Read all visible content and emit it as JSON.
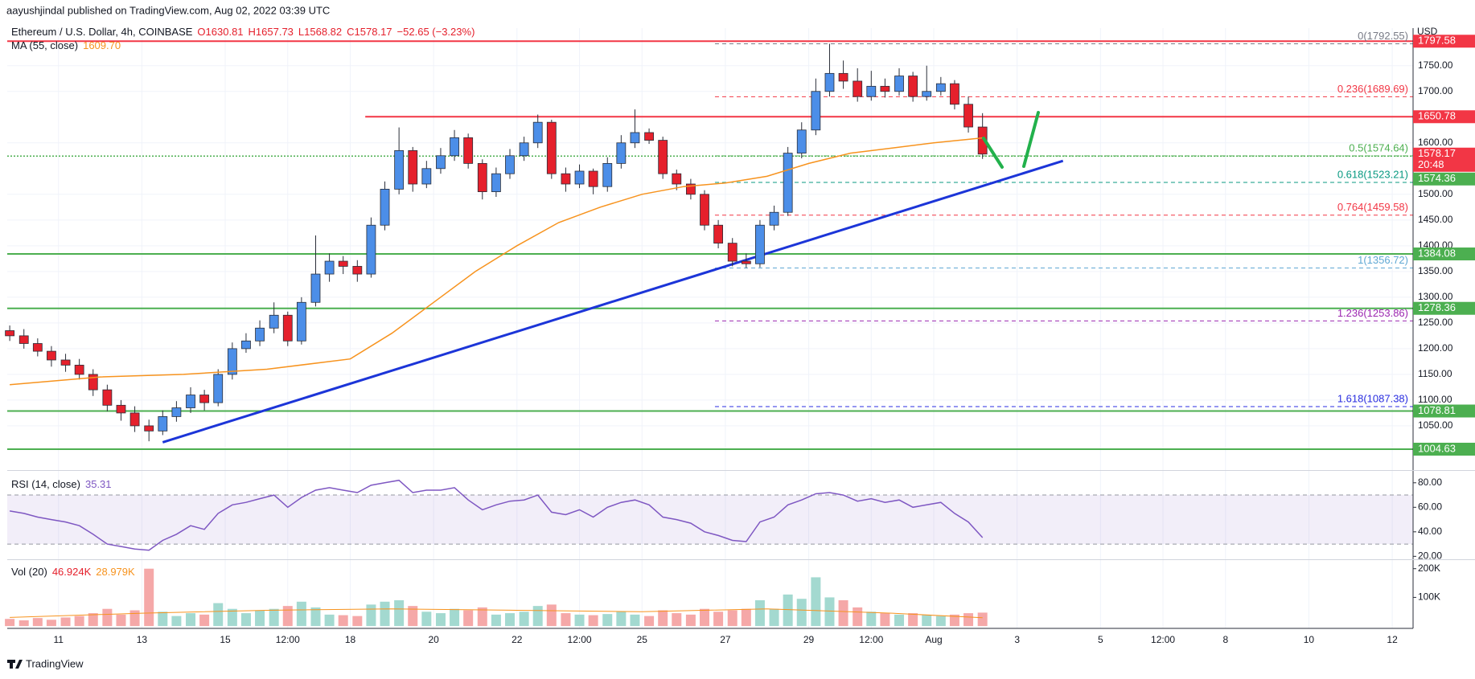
{
  "header": {
    "publisher": "aayushjindal published on TradingView.com, Aug 02, 2022 03:39 UTC",
    "footer": "TradingView"
  },
  "chart_data": [
    {
      "type": "candlestick",
      "title": "Ethereum / U.S. Dollar, 4h, COINBASE",
      "legend": [
        "O1630.81",
        "H1657.73",
        "L1568.82",
        "C1578.17",
        "−52.65 (−3.23%)"
      ],
      "y_axis_label": "USD",
      "up_color": "#4c8ee8",
      "down_color": "#e5202c",
      "x": [
        -0.17,
        0.17,
        0.5,
        0.83,
        1.17,
        1.5,
        1.83,
        2.17,
        2.5,
        2.83,
        3.17,
        3.5,
        3.83,
        4.17,
        4.5,
        4.83,
        5.17,
        5.5,
        5.83,
        6.17,
        6.5,
        6.83,
        7.17,
        7.5,
        7.83,
        8.17,
        8.5,
        8.83,
        9.17,
        9.5,
        9.83,
        10.17,
        10.5,
        10.83,
        11.17,
        11.5,
        11.83,
        12.17,
        12.5,
        12.83,
        13.17,
        13.5,
        13.83,
        14.17,
        14.5,
        14.83,
        15.17,
        15.5,
        15.83,
        16.17,
        16.5,
        16.83,
        17.17,
        17.5,
        17.83,
        18.17,
        18.5,
        18.83,
        19.17,
        19.5,
        19.83,
        20.17,
        20.5,
        20.83,
        21.17,
        21.5,
        21.83,
        22.17,
        22.5,
        22.83,
        23.17
      ],
      "open": [
        1235,
        1225,
        1210,
        1195,
        1178,
        1168,
        1150,
        1120,
        1090,
        1075,
        1050,
        1040,
        1068,
        1085,
        1110,
        1095,
        1150,
        1200,
        1215,
        1240,
        1265,
        1215,
        1290,
        1345,
        1370,
        1360,
        1345,
        1440,
        1510,
        1585,
        1520,
        1550,
        1575,
        1610,
        1560,
        1505,
        1540,
        1575,
        1600,
        1640,
        1540,
        1520,
        1545,
        1515,
        1560,
        1600,
        1620,
        1605,
        1540,
        1520,
        1500,
        1440,
        1405,
        1370,
        1365,
        1440,
        1465,
        1580,
        1625,
        1700,
        1735,
        1720,
        1690,
        1710,
        1700,
        1730,
        1690,
        1700,
        1715,
        1675,
        1630.81
      ],
      "high": [
        1245,
        1238,
        1220,
        1205,
        1190,
        1180,
        1160,
        1130,
        1100,
        1088,
        1062,
        1080,
        1098,
        1125,
        1120,
        1160,
        1212,
        1230,
        1255,
        1290,
        1272,
        1300,
        1420,
        1385,
        1380,
        1372,
        1455,
        1525,
        1630,
        1592,
        1565,
        1590,
        1625,
        1618,
        1568,
        1552,
        1588,
        1612,
        1655,
        1645,
        1552,
        1558,
        1550,
        1572,
        1615,
        1665,
        1628,
        1612,
        1548,
        1530,
        1508,
        1450,
        1415,
        1385,
        1450,
        1478,
        1592,
        1640,
        1725,
        1792.55,
        1760,
        1745,
        1740,
        1725,
        1745,
        1738,
        1750,
        1728,
        1722,
        1690,
        1657.73
      ],
      "low": [
        1215,
        1200,
        1185,
        1165,
        1155,
        1140,
        1108,
        1078,
        1060,
        1038,
        1020,
        1032,
        1058,
        1075,
        1080,
        1088,
        1140,
        1192,
        1205,
        1230,
        1205,
        1208,
        1282,
        1330,
        1345,
        1330,
        1338,
        1430,
        1500,
        1505,
        1512,
        1540,
        1565,
        1550,
        1490,
        1495,
        1530,
        1565,
        1590,
        1530,
        1505,
        1512,
        1500,
        1505,
        1550,
        1590,
        1598,
        1530,
        1508,
        1490,
        1430,
        1395,
        1360,
        1356.72,
        1358,
        1430,
        1458,
        1570,
        1615,
        1690,
        1705,
        1680,
        1682,
        1688,
        1692,
        1680,
        1682,
        1692,
        1665,
        1620,
        1568.82
      ],
      "close": [
        1225,
        1210,
        1195,
        1178,
        1168,
        1150,
        1120,
        1090,
        1075,
        1050,
        1040,
        1068,
        1085,
        1110,
        1095,
        1150,
        1200,
        1215,
        1240,
        1265,
        1215,
        1290,
        1345,
        1370,
        1360,
        1345,
        1440,
        1510,
        1585,
        1520,
        1550,
        1575,
        1610,
        1560,
        1505,
        1540,
        1575,
        1600,
        1640,
        1540,
        1520,
        1545,
        1515,
        1560,
        1600,
        1620,
        1605,
        1540,
        1520,
        1500,
        1440,
        1405,
        1370,
        1365,
        1440,
        1465,
        1580,
        1625,
        1700,
        1735,
        1720,
        1690,
        1710,
        1700,
        1730,
        1690,
        1700,
        1715,
        1675,
        1630.81,
        1578.17
      ],
      "xlim": [
        -0.23,
        33.5
      ],
      "xticks": [
        {
          "value": 1,
          "label": "11"
        },
        {
          "value": 3,
          "label": "13"
        },
        {
          "value": 5,
          "label": "15"
        },
        {
          "value": 6.5,
          "label": "12:00"
        },
        {
          "value": 8,
          "label": "18"
        },
        {
          "value": 10,
          "label": "20"
        },
        {
          "value": 12,
          "label": "22"
        },
        {
          "value": 13.5,
          "label": "12:00"
        },
        {
          "value": 15,
          "label": "25"
        },
        {
          "value": 17,
          "label": "27"
        },
        {
          "value": 19,
          "label": "29"
        },
        {
          "value": 20.5,
          "label": "12:00"
        },
        {
          "value": 22,
          "label": "Aug"
        },
        {
          "value": 24,
          "label": "3"
        },
        {
          "value": 26,
          "label": "5"
        },
        {
          "value": 27.5,
          "label": "12:00"
        },
        {
          "value": 29,
          "label": "8"
        },
        {
          "value": 31,
          "label": "10"
        },
        {
          "value": 33,
          "label": "12"
        }
      ],
      "ylim": [
        964,
        1823
      ],
      "yticks": [
        {
          "value": 1750,
          "label": "1750.00"
        },
        {
          "value": 1700,
          "label": "1700.00"
        },
        {
          "value": 1600,
          "label": "1600.00"
        },
        {
          "value": 1500,
          "label": "1500.00"
        },
        {
          "value": 1450,
          "label": "1450.00"
        },
        {
          "value": 1400,
          "label": "1400.00"
        },
        {
          "value": 1350,
          "label": "1350.00"
        },
        {
          "value": 1300,
          "label": "1300.00"
        },
        {
          "value": 1250,
          "label": "1250.00"
        },
        {
          "value": 1200,
          "label": "1200.00"
        },
        {
          "value": 1150,
          "label": "1150.00"
        },
        {
          "value": 1100,
          "label": "1100.00"
        },
        {
          "value": 1050,
          "label": "1050.00"
        }
      ],
      "grid": true,
      "ma": {
        "name": "MA (55, close)",
        "value_label": "1609.70",
        "color": "#f7931e",
        "x": [
          -0.17,
          2,
          4,
          6,
          8,
          9,
          10,
          11,
          12,
          13,
          14,
          15,
          16,
          17,
          18,
          19,
          20,
          21,
          22,
          23.17
        ],
        "values": [
          1130,
          1145,
          1150,
          1160,
          1180,
          1230,
          1290,
          1350,
          1400,
          1445,
          1475,
          1500,
          1515,
          1522,
          1535,
          1560,
          1580,
          1590,
          1600,
          1609.7
        ]
      },
      "levels": [
        {
          "value": 1797.58,
          "color": "#f23645"
        },
        {
          "value": 1650.78,
          "color": "#f23645",
          "from": 8.36
        },
        {
          "value": 1574.36,
          "color": "#4caf50",
          "style": "dotted"
        },
        {
          "value": 1384.08,
          "color": "#4caf50"
        },
        {
          "value": 1278.36,
          "color": "#4caf50"
        },
        {
          "value": 1078.81,
          "color": "#4caf50"
        },
        {
          "value": 1004.63,
          "color": "#4caf50"
        }
      ],
      "price_tag": {
        "value": 1578.17,
        "countdown": "20:48",
        "color": "#f23645"
      },
      "fib_from": 16.75,
      "fib": [
        {
          "label": "0(1792.55)",
          "value": 1792.55,
          "color": "#787b86"
        },
        {
          "label": "0.236(1689.69)",
          "value": 1689.69,
          "color": "#f23645"
        },
        {
          "label": "0.5(1574.64)",
          "value": 1574.64,
          "color": "#4caf50"
        },
        {
          "label": "0.618(1523.21)",
          "value": 1523.21,
          "color": "#089981"
        },
        {
          "label": "0.764(1459.58)",
          "value": 1459.58,
          "color": "#f23645"
        },
        {
          "label": "1(1356.72)",
          "value": 1356.72,
          "color": "#5fa8d3"
        },
        {
          "label": "1.236(1253.86)",
          "value": 1253.86,
          "color": "#9c27b0"
        },
        {
          "label": "1.618(1087.38)",
          "value": 1087.38,
          "color": "#2a2ee0"
        }
      ],
      "trendline": {
        "x": [
          3.5,
          25.1
        ],
        "values": [
          1018,
          1565
        ],
        "color": "#1c35d8"
      }
    },
    {
      "type": "line",
      "name": "RSI (14, close)",
      "value_label": "35.31",
      "color": "#7e57c2",
      "band": [
        30,
        70
      ],
      "values": [
        57,
        55,
        52,
        50,
        48,
        45,
        38,
        30,
        28,
        26,
        25,
        33,
        38,
        45,
        42,
        55,
        62,
        64,
        67,
        70,
        60,
        68,
        74,
        76,
        74,
        72,
        78,
        80,
        82,
        72,
        74,
        74,
        76,
        66,
        58,
        62,
        65,
        66,
        70,
        56,
        54,
        58,
        52,
        60,
        64,
        66,
        62,
        52,
        50,
        47,
        40,
        37,
        33,
        32,
        48,
        52,
        62,
        66,
        71,
        72,
        70,
        65,
        67,
        64,
        66,
        60,
        62,
        64,
        55,
        48,
        35.31
      ],
      "ylim": [
        17.6,
        89.7
      ],
      "yticks": [
        {
          "value": 80,
          "label": "80.00"
        },
        {
          "value": 60,
          "label": "60.00"
        },
        {
          "value": 40,
          "label": "40.00"
        },
        {
          "value": 20,
          "label": "20.00"
        }
      ]
    },
    {
      "type": "bar",
      "name": "Vol (20)",
      "value_label": "46.924K",
      "up_color": "#a3d9d0",
      "down_color": "#f5a8a8",
      "values": [
        25000,
        20000,
        28000,
        22000,
        30000,
        35000,
        45000,
        60000,
        40000,
        55000,
        200000,
        50000,
        35000,
        45000,
        40000,
        80000,
        60000,
        45000,
        55000,
        60000,
        70000,
        85000,
        65000,
        40000,
        38000,
        35000,
        75000,
        85000,
        90000,
        70000,
        50000,
        45000,
        60000,
        55000,
        65000,
        40000,
        45000,
        50000,
        70000,
        75000,
        45000,
        40000,
        38000,
        42000,
        50000,
        40000,
        35000,
        55000,
        45000,
        40000,
        60000,
        50000,
        55000,
        60000,
        90000,
        60000,
        110000,
        95000,
        170000,
        100000,
        90000,
        65000,
        50000,
        45000,
        40000,
        45000,
        38000,
        35000,
        40000,
        45000,
        46924
      ],
      "ma": {
        "value_label": "28.979K",
        "color": "#f7931e",
        "x": [
          -0.17,
          3,
          6,
          9,
          12,
          15,
          18,
          21,
          23.17
        ],
        "values": [
          30000,
          45000,
          55000,
          60000,
          55000,
          50000,
          60000,
          45000,
          28979
        ]
      },
      "ylim": [
        -8000,
        230000
      ],
      "yticks": [
        {
          "value": 200000,
          "label": "200K"
        },
        {
          "value": 100000,
          "label": "100K"
        }
      ]
    }
  ]
}
